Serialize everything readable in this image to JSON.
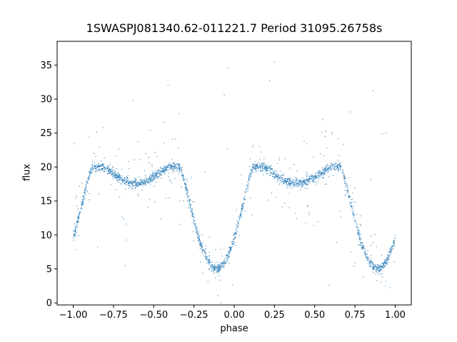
{
  "chart_data": {
    "type": "scatter",
    "title": "1SWASPJ081340.62-011221.7 Period 31095.26758s",
    "xlabel": "phase",
    "ylabel": "flux",
    "xlim": [
      -1.1,
      1.1
    ],
    "ylim": [
      -0.3,
      38.5
    ],
    "xticks": [
      -1.0,
      -0.75,
      -0.5,
      -0.25,
      0.0,
      0.25,
      0.5,
      0.75,
      1.0
    ],
    "xtick_labels": [
      "−1.00",
      "−0.75",
      "−0.50",
      "−0.25",
      "0.00",
      "0.25",
      "0.50",
      "0.75",
      "1.00"
    ],
    "yticks": [
      0,
      5,
      10,
      15,
      20,
      25,
      30,
      35
    ],
    "ytick_labels": [
      "0",
      "5",
      "10",
      "15",
      "20",
      "25",
      "30",
      "35"
    ],
    "grid": false,
    "point_color": "#1f77b4",
    "light_curve": {
      "baseline_flux": 20.0,
      "primary_minimum": {
        "phases": [
          -0.11,
          0.89
        ],
        "flux": 5.0
      },
      "secondary_minimum": {
        "phases": [
          -0.61,
          0.39
        ],
        "flux": 17.6
      },
      "phase_range": [
        -1.0,
        1.0
      ]
    }
  }
}
